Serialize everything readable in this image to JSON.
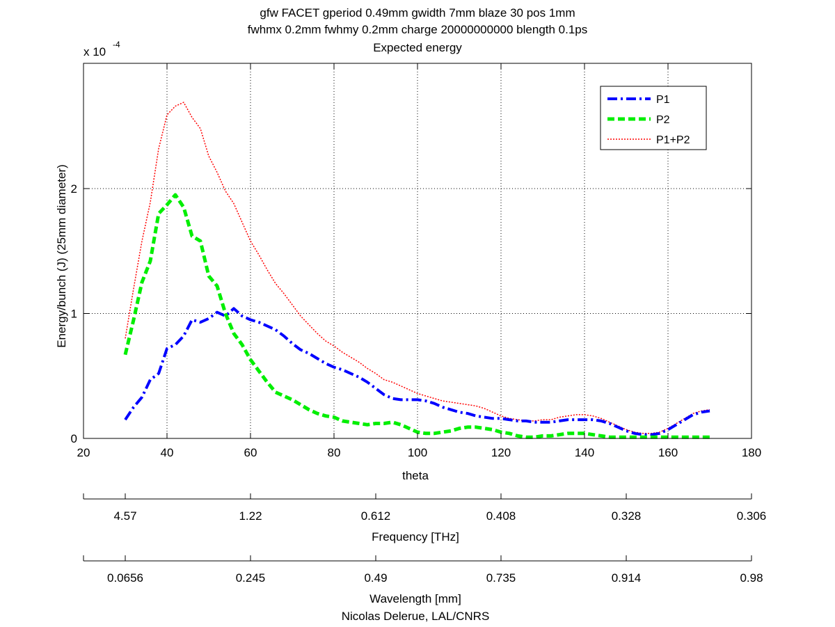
{
  "chart_data": {
    "type": "line",
    "title": [
      "gfw FACET gperiod 0.49mm gwidth 7mm blaze 30 pos 1mm",
      "fwhmx 0.2mm fwhmy 0.2mm charge 20000000000 blength 0.1ps",
      "Expected energy"
    ],
    "xlabel": "theta",
    "ylabel": "Energy/bunch (J) (25mm diameter)",
    "y_exponent_label": "x 10",
    "y_exponent_power": "-4",
    "xlim": [
      20,
      180
    ],
    "ylim": [
      0,
      3.0
    ],
    "y_scale_note": "values in units of 1e-4 J",
    "x_ticks": [
      "20",
      "40",
      "60",
      "80",
      "100",
      "120",
      "140",
      "160",
      "180"
    ],
    "y_ticks": [
      "0",
      "1",
      "2"
    ],
    "grid": true,
    "legend_position": "top-right",
    "series": [
      {
        "name": "P1",
        "color": "#0000ff",
        "style": "dash-dot",
        "x": [
          30,
          32,
          34,
          36,
          38,
          40,
          42,
          44,
          46,
          48,
          50,
          52,
          54,
          56,
          58,
          60,
          62,
          64,
          66,
          68,
          70,
          72,
          74,
          76,
          78,
          80,
          82,
          84,
          86,
          88,
          90,
          92,
          94,
          96,
          98,
          100,
          102,
          104,
          106,
          108,
          110,
          112,
          114,
          116,
          118,
          120,
          122,
          124,
          126,
          128,
          130,
          132,
          134,
          136,
          138,
          140,
          142,
          144,
          146,
          148,
          150,
          152,
          154,
          156,
          158,
          160,
          162,
          164,
          166,
          168,
          170
        ],
        "y": [
          0.15,
          0.25,
          0.33,
          0.47,
          0.52,
          0.72,
          0.75,
          0.82,
          0.95,
          0.93,
          0.96,
          1.01,
          0.98,
          1.04,
          0.98,
          0.95,
          0.93,
          0.9,
          0.87,
          0.82,
          0.76,
          0.71,
          0.68,
          0.64,
          0.6,
          0.57,
          0.55,
          0.52,
          0.49,
          0.45,
          0.4,
          0.35,
          0.32,
          0.31,
          0.31,
          0.31,
          0.3,
          0.28,
          0.25,
          0.23,
          0.21,
          0.2,
          0.18,
          0.17,
          0.16,
          0.16,
          0.15,
          0.14,
          0.14,
          0.13,
          0.13,
          0.13,
          0.14,
          0.15,
          0.15,
          0.15,
          0.15,
          0.14,
          0.12,
          0.09,
          0.06,
          0.04,
          0.03,
          0.03,
          0.04,
          0.07,
          0.11,
          0.15,
          0.19,
          0.21,
          0.22
        ]
      },
      {
        "name": "P2",
        "color": "#00ee00",
        "style": "dashed",
        "x": [
          30,
          32,
          34,
          36,
          38,
          40,
          42,
          44,
          46,
          48,
          50,
          52,
          54,
          56,
          58,
          60,
          62,
          64,
          66,
          68,
          70,
          72,
          74,
          76,
          78,
          80,
          82,
          84,
          86,
          88,
          90,
          92,
          94,
          96,
          98,
          100,
          102,
          104,
          106,
          108,
          110,
          112,
          114,
          116,
          118,
          120,
          122,
          124,
          126,
          128,
          130,
          132,
          134,
          136,
          138,
          140,
          142,
          144,
          146,
          148,
          150,
          152,
          154,
          156,
          158,
          160,
          162,
          164,
          166,
          168,
          170
        ],
        "y": [
          0.67,
          0.95,
          1.25,
          1.42,
          1.8,
          1.87,
          1.95,
          1.85,
          1.62,
          1.58,
          1.3,
          1.22,
          1.0,
          0.84,
          0.75,
          0.63,
          0.54,
          0.45,
          0.37,
          0.34,
          0.31,
          0.27,
          0.23,
          0.2,
          0.18,
          0.17,
          0.14,
          0.13,
          0.12,
          0.11,
          0.12,
          0.12,
          0.13,
          0.11,
          0.08,
          0.05,
          0.04,
          0.04,
          0.05,
          0.06,
          0.08,
          0.09,
          0.09,
          0.08,
          0.07,
          0.05,
          0.04,
          0.02,
          0.01,
          0.01,
          0.02,
          0.02,
          0.03,
          0.04,
          0.04,
          0.04,
          0.03,
          0.02,
          0.01,
          0.01,
          0.01,
          0.01,
          0.01,
          0.01,
          0.01,
          0.01,
          0.01,
          0.01,
          0.01,
          0.01,
          0.01
        ]
      },
      {
        "name": "P1+P2",
        "color": "#ff0000",
        "style": "dotted",
        "x": [
          30,
          32,
          34,
          36,
          38,
          40,
          42,
          44,
          46,
          48,
          50,
          52,
          54,
          56,
          58,
          60,
          62,
          64,
          66,
          68,
          70,
          72,
          74,
          76,
          78,
          80,
          82,
          84,
          86,
          88,
          90,
          92,
          94,
          96,
          98,
          100,
          102,
          104,
          106,
          108,
          110,
          112,
          114,
          116,
          118,
          120,
          122,
          124,
          126,
          128,
          130,
          132,
          134,
          136,
          138,
          140,
          142,
          144,
          146,
          148,
          150,
          152,
          154,
          156,
          158,
          160,
          162,
          164,
          166,
          168,
          170
        ],
        "y": [
          0.8,
          1.2,
          1.58,
          1.89,
          2.32,
          2.59,
          2.66,
          2.69,
          2.57,
          2.48,
          2.26,
          2.13,
          1.98,
          1.88,
          1.73,
          1.58,
          1.47,
          1.35,
          1.24,
          1.16,
          1.07,
          0.98,
          0.91,
          0.84,
          0.78,
          0.74,
          0.69,
          0.65,
          0.61,
          0.56,
          0.52,
          0.47,
          0.45,
          0.42,
          0.39,
          0.36,
          0.34,
          0.32,
          0.3,
          0.29,
          0.28,
          0.27,
          0.26,
          0.24,
          0.21,
          0.18,
          0.16,
          0.15,
          0.14,
          0.14,
          0.15,
          0.15,
          0.17,
          0.18,
          0.19,
          0.19,
          0.18,
          0.16,
          0.13,
          0.1,
          0.07,
          0.05,
          0.04,
          0.04,
          0.05,
          0.08,
          0.12,
          0.16,
          0.2,
          0.22,
          0.23
        ]
      }
    ],
    "secondary_axes": [
      {
        "label": "Frequency [THz]",
        "tick_positions_theta": [
          30,
          60,
          90,
          120,
          150,
          180
        ],
        "tick_labels": [
          "4.57",
          "1.22",
          "0.612",
          "0.408",
          "0.328",
          "0.306"
        ]
      },
      {
        "label": "Wavelength [mm]",
        "tick_positions_theta": [
          30,
          60,
          90,
          120,
          150,
          180
        ],
        "tick_labels": [
          "0.0656",
          "0.245",
          "0.49",
          "0.735",
          "0.914",
          "0.98"
        ]
      }
    ],
    "footer": "Nicolas Delerue, LAL/CNRS"
  }
}
